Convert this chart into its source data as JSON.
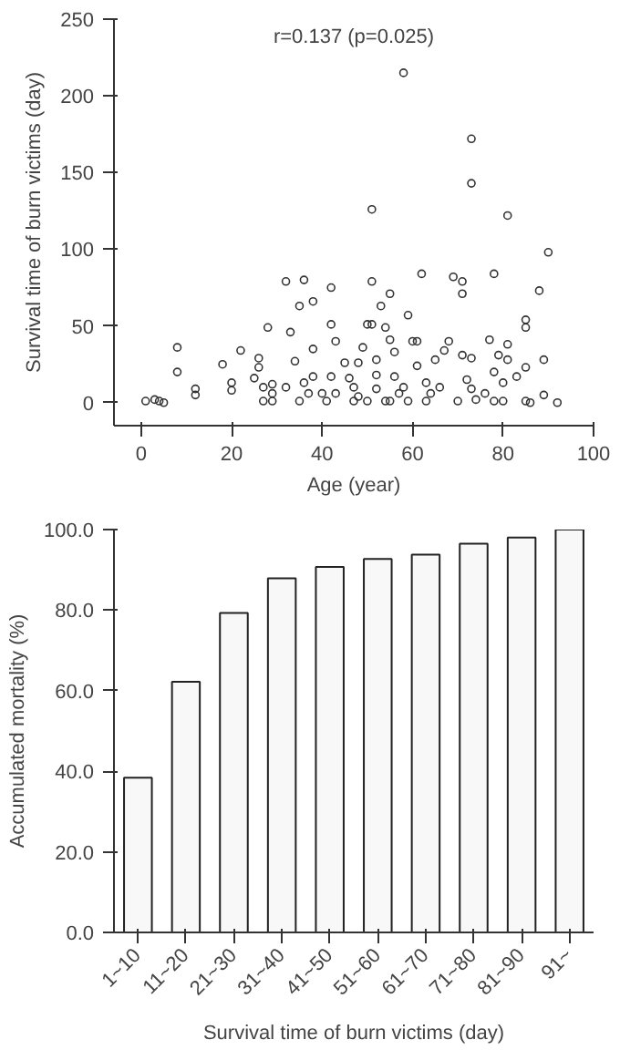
{
  "chart_data": [
    {
      "type": "scatter",
      "xlabel": "Age (year)",
      "ylabel": "Survival time of burn victims (day)",
      "annotations": [
        "r=0.137 (p=0.025)"
      ],
      "xlim": [
        -6,
        100
      ],
      "ylim": [
        -15,
        250
      ],
      "xticks": [
        0,
        20,
        40,
        60,
        80,
        100
      ],
      "yticks": [
        0,
        50,
        100,
        150,
        200,
        250
      ],
      "grid": false,
      "marker": "circle",
      "series": [
        {
          "color": "#333333",
          "x": [
            58,
            73,
            73,
            51,
            81,
            90,
            1,
            3,
            4,
            5,
            8,
            8,
            12,
            12,
            18,
            20,
            20,
            22,
            25,
            26,
            26,
            27,
            28,
            29,
            29,
            27,
            29,
            32,
            32,
            33,
            34,
            35,
            36,
            38,
            38,
            38,
            35,
            36,
            37,
            42,
            42,
            42,
            43,
            43,
            45,
            46,
            47,
            47,
            48,
            49,
            50,
            51,
            51,
            52,
            52,
            52,
            53,
            54,
            55,
            55,
            55,
            56,
            56,
            57,
            59,
            60,
            61,
            61,
            62,
            63,
            64,
            65,
            67,
            68,
            69,
            70,
            71,
            71,
            71,
            72,
            73,
            73,
            74,
            76,
            77,
            78,
            78,
            78,
            79,
            80,
            81,
            81,
            80,
            83,
            85,
            85,
            85,
            85,
            86,
            88,
            89,
            89,
            92,
            40,
            41,
            48,
            50,
            54,
            58,
            59,
            63,
            66
          ],
          "values": [
            215,
            172,
            143,
            126,
            122,
            98,
            1,
            2,
            1,
            0,
            36,
            20,
            5,
            9,
            25,
            13,
            8,
            34,
            16,
            29,
            23,
            10,
            49,
            12,
            6,
            1,
            1,
            79,
            10,
            46,
            27,
            63,
            80,
            66,
            35,
            17,
            1,
            13,
            6,
            75,
            51,
            17,
            40,
            6,
            26,
            16,
            1,
            10,
            26,
            36,
            51,
            51,
            79,
            28,
            18,
            9,
            63,
            49,
            41,
            71,
            1,
            33,
            17,
            6,
            57,
            40,
            40,
            24,
            84,
            13,
            6,
            28,
            34,
            40,
            82,
            1,
            79,
            71,
            31,
            15,
            9,
            29,
            2,
            6,
            41,
            84,
            20,
            1,
            31,
            13,
            38,
            28,
            1,
            17,
            54,
            49,
            23,
            1,
            0,
            73,
            28,
            5,
            0,
            6,
            1,
            4,
            1,
            1,
            10,
            1,
            1,
            10
          ]
        }
      ]
    },
    {
      "type": "bar",
      "xlabel": "Survival time of burn victims (day)",
      "ylabel": "Accumulated mortality (%)",
      "categories": [
        "1~10",
        "11~20",
        "21~30",
        "31~40",
        "41~50",
        "51~60",
        "61~70",
        "71~80",
        "81~90",
        "91~"
      ],
      "values": [
        38.4,
        62.2,
        79.3,
        87.9,
        90.7,
        92.7,
        93.8,
        96.5,
        98.0,
        100.0
      ],
      "color": "#f8f8f8",
      "ylim": [
        0,
        100
      ],
      "yticks": [
        {
          "value": 0,
          "label": "0.0"
        },
        {
          "value": 20,
          "label": "20.0"
        },
        {
          "value": 40,
          "label": "40.0"
        },
        {
          "value": 60,
          "label": "60.0"
        },
        {
          "value": 80,
          "label": "80.0"
        },
        {
          "value": 100,
          "label": "100.0"
        }
      ],
      "grid": false
    }
  ]
}
